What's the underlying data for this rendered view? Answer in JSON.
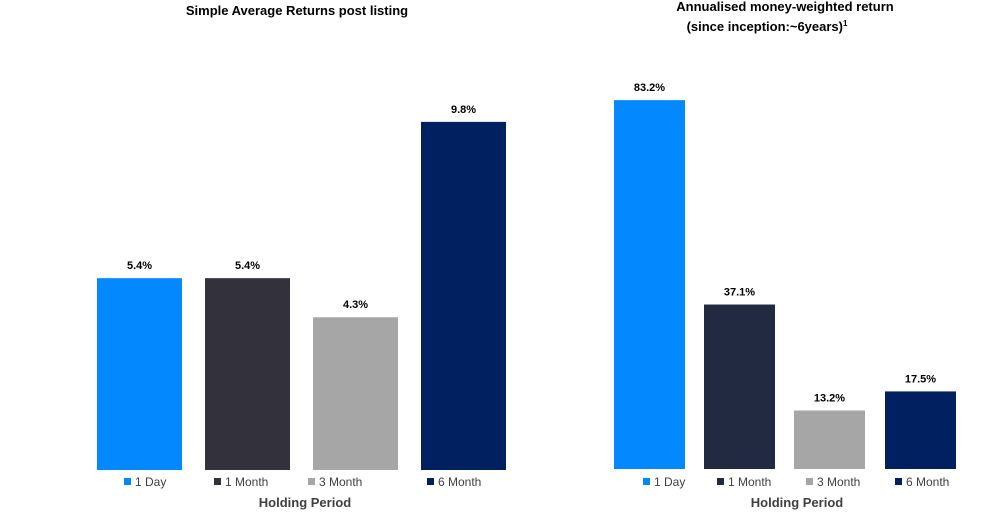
{
  "chart_data": [
    {
      "type": "bar",
      "title": "Simple Average Returns post listing",
      "xlabel": "Holding Period",
      "ylabel": "",
      "ylim": [
        0,
        10.5
      ],
      "grid": false,
      "legend": "bottom",
      "categories": [
        "1 Day",
        "1 Month",
        "3 Month",
        "6 Month"
      ],
      "values": [
        5.4,
        5.4,
        4.3,
        9.8
      ],
      "value_labels": [
        "5.4%",
        "5.4%",
        "4.3%",
        "9.8%"
      ],
      "colors": [
        "#0389fd",
        "#32313c",
        "#a6a6a6",
        "#002060"
      ]
    },
    {
      "type": "bar",
      "title": "Annualised money-weighted return",
      "subtitle": "(since inception:~6years)",
      "subtitle_superscript": "1",
      "xlabel": "Holding Period",
      "ylabel": "",
      "ylim": [
        0,
        90
      ],
      "grid": false,
      "legend": "bottom",
      "categories": [
        "1 Day",
        "1 Month",
        "3 Month",
        "6 Month"
      ],
      "values": [
        83.2,
        37.1,
        13.2,
        17.5
      ],
      "value_labels": [
        "83.2%",
        "37.1%",
        "13.2%",
        "17.5%"
      ],
      "colors": [
        "#0389fd",
        "#222a42",
        "#a6a6a6",
        "#002060"
      ]
    }
  ]
}
